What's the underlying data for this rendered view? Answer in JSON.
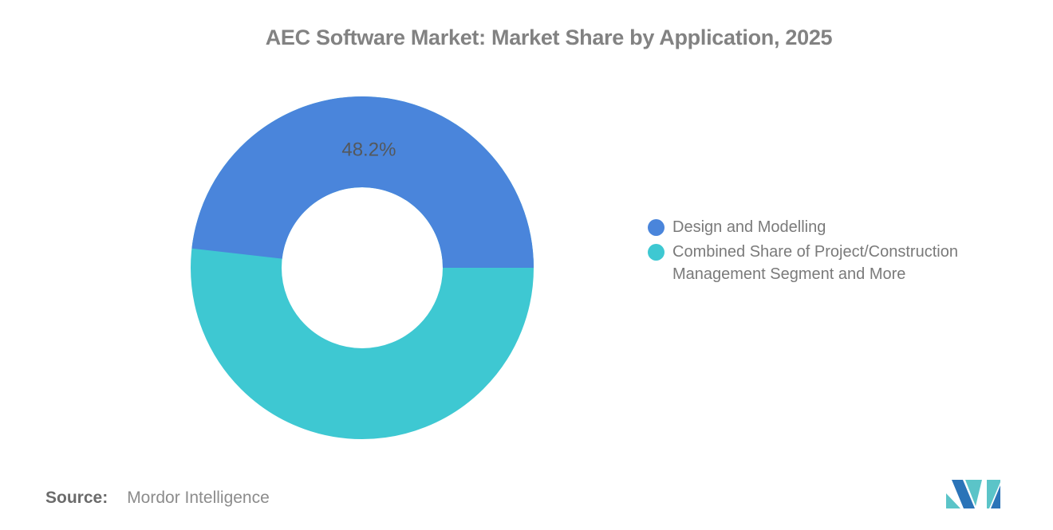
{
  "title": "AEC Software Market: Market Share by Application, 2025",
  "chart_data": {
    "type": "pie",
    "subtype": "donut",
    "title": "AEC Software Market: Market Share by Application, 2025",
    "categories": [
      "Design and Modelling",
      "Combined Share of Project/Construction Management Segment and More"
    ],
    "values": [
      48.2,
      51.8
    ],
    "colors": [
      "#4A85DB",
      "#3EC8D2"
    ],
    "data_labels": [
      "48.2%",
      ""
    ],
    "start_angle_deg": 0,
    "direction": "counterclockwise",
    "inner_radius_ratio": 0.47,
    "legend_position": "right",
    "grid": false
  },
  "legend": {
    "items": [
      {
        "color": "#4A85DB",
        "lines": {
          "0": "Design and Modelling",
          "1": ""
        }
      },
      {
        "color": "#3EC8D2",
        "lines": {
          "0": "Combined Share of Project/Construction",
          "1": "Management Segment and More"
        }
      }
    ]
  },
  "source": {
    "label": "Source:",
    "value": "Mordor Intelligence"
  },
  "logo": {
    "name": "Mordor Intelligence",
    "teal": "#5BC4C8",
    "blue": "#2B74B8"
  }
}
